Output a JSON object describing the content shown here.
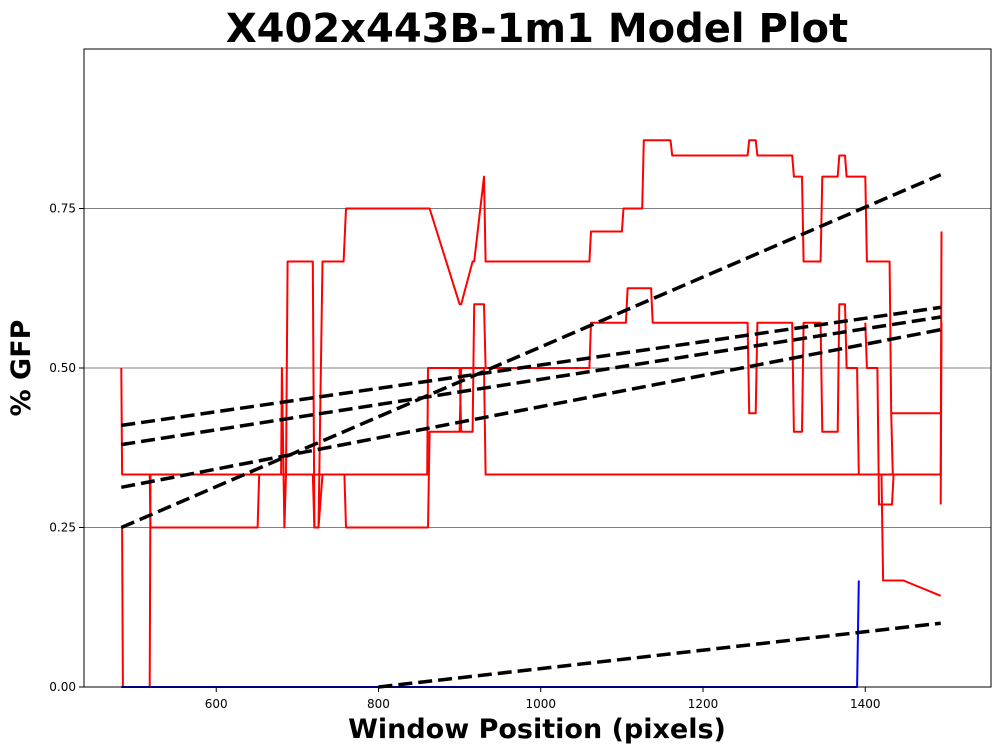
{
  "chart_data": {
    "type": "line",
    "title": "X402x443B-1m1 Model Plot",
    "xlabel": "Window Position (pixels)",
    "ylabel": "% GFP",
    "xlim": [
      437,
      1555
    ],
    "ylim": [
      0.0,
      1.0
    ],
    "xticks": [
      600,
      800,
      1000,
      1200,
      1400
    ],
    "yticks": [
      0.0,
      0.25,
      0.5,
      0.75
    ],
    "ytick_labels": [
      "0.00",
      "0.25",
      "0.50",
      "0.75"
    ],
    "grid": "horizontal",
    "colors": {
      "data": "#ff0000",
      "blue": "#0000ff",
      "fit": "#000000",
      "grid": "#808080"
    },
    "series": [
      {
        "color": "#ff0000",
        "style": "solid",
        "x": [
          483,
          484,
          518,
          519,
          521,
          651,
          653,
          680,
          681,
          684,
          686,
          719,
          721,
          726,
          731,
          758,
          760,
          861,
          863,
          900,
          902,
          930,
          932,
          1160,
          1162,
          1493
        ],
        "y": [
          0.5,
          0.333,
          0.333,
          0.25,
          0.25,
          0.25,
          0.333,
          0.333,
          0.5,
          0.25,
          0.333,
          0.333,
          0.25,
          0.25,
          0.333,
          0.333,
          0.25,
          0.25,
          0.4,
          0.4,
          0.5,
          0.5,
          0.333,
          0.333,
          0.333,
          0.333
        ]
      },
      {
        "color": "#ff0000",
        "style": "solid",
        "x": [
          484,
          485,
          518,
          519,
          521,
          860,
          861,
          863,
          900,
          902,
          916,
          918,
          930,
          932,
          1060,
          1062,
          1105,
          1107,
          1136,
          1138,
          1255,
          1257,
          1265,
          1267,
          1310,
          1312,
          1322,
          1324,
          1345,
          1347,
          1366,
          1368,
          1375,
          1377,
          1390,
          1392,
          1420,
          1422,
          1445,
          1447,
          1493
        ],
        "y": [
          0.25,
          0.0,
          0.0,
          0.333,
          0.333,
          0.333,
          0.5,
          0.5,
          0.5,
          0.4,
          0.4,
          0.6,
          0.6,
          0.5,
          0.5,
          0.571,
          0.571,
          0.625,
          0.625,
          0.571,
          0.571,
          0.429,
          0.429,
          0.571,
          0.571,
          0.4,
          0.4,
          0.571,
          0.571,
          0.4,
          0.4,
          0.6,
          0.6,
          0.5,
          0.5,
          0.333,
          0.333,
          0.167,
          0.167,
          0.167,
          0.143
        ]
      },
      {
        "color": "#ff0000",
        "style": "solid",
        "x": [
          686,
          688,
          719,
          721,
          726,
          731,
          757,
          760,
          863,
          900,
          902,
          916,
          918,
          930,
          932,
          1060,
          1062,
          1100,
          1102,
          1125,
          1127,
          1160,
          1162,
          1255,
          1257,
          1265,
          1267,
          1310,
          1312,
          1322,
          1324,
          1345,
          1347,
          1366,
          1368,
          1375,
          1377,
          1400,
          1402,
          1430,
          1432,
          1493
        ],
        "y": [
          0.333,
          0.667,
          0.667,
          0.25,
          0.25,
          0.667,
          0.667,
          0.75,
          0.75,
          0.6,
          0.6,
          0.667,
          0.667,
          0.8,
          0.667,
          0.667,
          0.714,
          0.714,
          0.75,
          0.75,
          0.857,
          0.857,
          0.833,
          0.833,
          0.857,
          0.857,
          0.833,
          0.833,
          0.8,
          0.8,
          0.667,
          0.667,
          0.8,
          0.8,
          0.833,
          0.833,
          0.8,
          0.8,
          0.667,
          0.667,
          0.429,
          0.429
        ]
      },
      {
        "color": "#ff0000",
        "style": "solid",
        "x": [
          1432,
          1434,
          1493,
          1494
        ],
        "y": [
          0.429,
          0.333,
          0.333,
          0.714
        ]
      },
      {
        "color": "#ff0000",
        "style": "solid",
        "x": [
          1400,
          1402,
          1415,
          1417,
          1433,
          1435,
          1493
        ],
        "y": [
          0.571,
          0.5,
          0.5,
          0.286,
          0.286,
          0.333,
          0.333
        ]
      },
      {
        "color": "#ff0000",
        "style": "solid",
        "x": [
          1493,
          1494
        ],
        "y": [
          0.286,
          0.571
        ]
      },
      {
        "color": "#0000ff",
        "style": "solid",
        "x": [
          483,
          1390,
          1392
        ],
        "y": [
          0.0,
          0.0,
          0.167
        ]
      },
      {
        "color": "#000000",
        "style": "dashed",
        "x": [
          483,
          1493
        ],
        "y": [
          0.41,
          0.595
        ]
      },
      {
        "color": "#000000",
        "style": "dashed",
        "x": [
          483,
          1493
        ],
        "y": [
          0.38,
          0.58
        ]
      },
      {
        "color": "#000000",
        "style": "dashed",
        "x": [
          483,
          1493
        ],
        "y": [
          0.313,
          0.56
        ]
      },
      {
        "color": "#000000",
        "style": "dashed",
        "x": [
          483,
          1493
        ],
        "y": [
          0.25,
          0.803
        ]
      },
      {
        "color": "#000000",
        "style": "dashed",
        "x": [
          800,
          1493
        ],
        "y": [
          0.0,
          0.1
        ]
      }
    ]
  }
}
